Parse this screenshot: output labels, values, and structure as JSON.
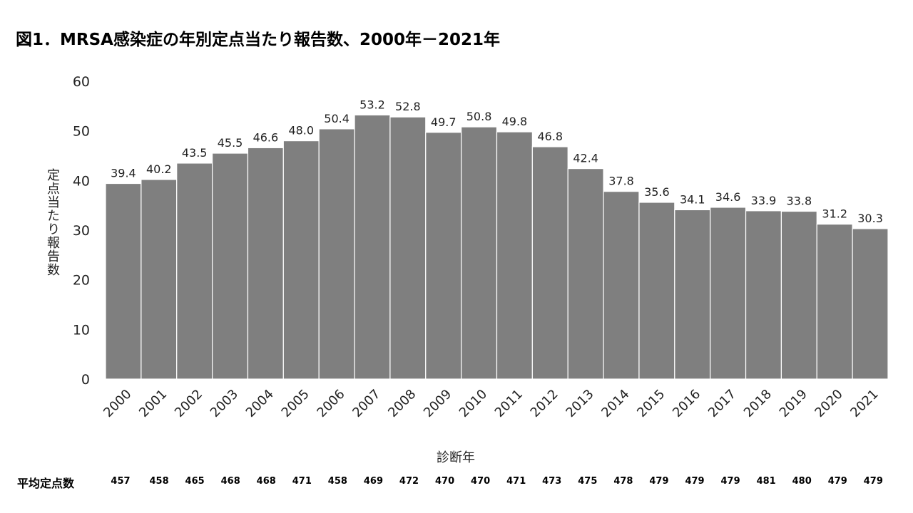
{
  "chart_data": {
    "type": "bar",
    "title": "図1．MRSA感染症の年別定点当たり報告数、2000年－2021年",
    "xlabel": "診断年",
    "ylabel": "定点当たり報告数",
    "ylim": [
      0,
      60
    ],
    "yticks": [
      0,
      10,
      20,
      30,
      40,
      50,
      60
    ],
    "categories": [
      "2000",
      "2001",
      "2002",
      "2003",
      "2004",
      "2005",
      "2006",
      "2007",
      "2008",
      "2009",
      "2010",
      "2011",
      "2012",
      "2013",
      "2014",
      "2015",
      "2016",
      "2017",
      "2018",
      "2019",
      "2020",
      "2021"
    ],
    "values": [
      39.4,
      40.2,
      43.5,
      45.5,
      46.6,
      48.0,
      50.4,
      53.2,
      52.8,
      49.7,
      50.8,
      49.8,
      46.8,
      42.4,
      37.8,
      35.6,
      34.1,
      34.6,
      33.9,
      33.8,
      31.2,
      30.3
    ],
    "bar_color": "#7f7f7f",
    "footer": {
      "label": "平均定点数",
      "values": [
        457,
        458,
        465,
        468,
        468,
        471,
        458,
        469,
        472,
        470,
        470,
        471,
        473,
        475,
        478,
        479,
        479,
        479,
        481,
        480,
        479,
        479
      ]
    }
  }
}
